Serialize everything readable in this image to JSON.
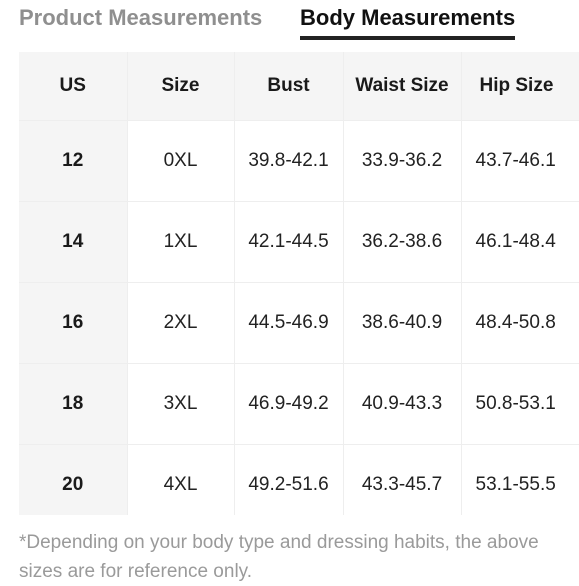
{
  "tabs": {
    "product_label": "Product Measurements",
    "body_label": "Body Measurements",
    "active": "Body Measurements"
  },
  "table": {
    "headers": [
      "US",
      "Size",
      "Bust",
      "Waist Size",
      "Hip Size"
    ],
    "rows": [
      [
        "12",
        "0XL",
        "39.8-42.1",
        "33.9-36.2",
        "43.7-46.1"
      ],
      [
        "14",
        "1XL",
        "42.1-44.5",
        "36.2-38.6",
        "46.1-48.4"
      ],
      [
        "16",
        "2XL",
        "44.5-46.9",
        "38.6-40.9",
        "48.4-50.8"
      ],
      [
        "18",
        "3XL",
        "46.9-49.2",
        "40.9-43.3",
        "50.8-53.1"
      ],
      [
        "20",
        "4XL",
        "49.2-51.6",
        "43.3-45.7",
        "53.1-55.5"
      ]
    ]
  },
  "note": "*Depending on your body type and dressing habits, the above sizes are for reference only.",
  "colors": {
    "active_tab": "#111111",
    "inactive_tab": "#8f8f8f",
    "header_bg": "#f5f5f5",
    "note_text": "#9a9a9a"
  }
}
